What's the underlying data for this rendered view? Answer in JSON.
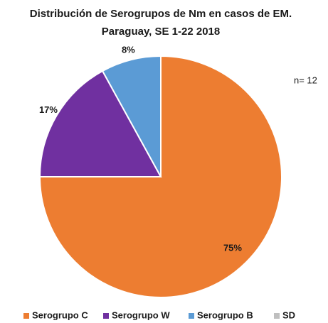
{
  "chart_data": {
    "type": "pie",
    "title": [
      "Distribución de Serogrupos de Nm en casos de EM.",
      "Paraguay, SE 1-22 2018"
    ],
    "annotation": "n= 12",
    "categories": [
      "Serogrupo C",
      "Serogrupo W",
      "Serogrupo B",
      "SD"
    ],
    "values": [
      75,
      17,
      8,
      0
    ],
    "value_labels": [
      "75%",
      "17%",
      "8%",
      null
    ],
    "colors": [
      "#ed7d31",
      "#7030a0",
      "#5b9bd5",
      "#bfbfbf"
    ],
    "legend": "bottom"
  }
}
